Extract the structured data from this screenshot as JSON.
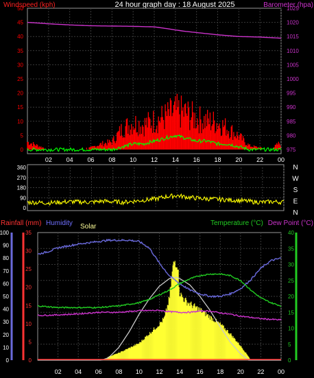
{
  "title": "24 hour graph day : 18 August 2025",
  "colors": {
    "wind": "#ff0000",
    "gust": "#ff0000",
    "avgwind": "#00ff00",
    "barometer": "#cc33cc",
    "direction": "#ffff00",
    "rain": "#ff3333",
    "humidity": "#6a6adc",
    "solar": "#ffff33",
    "solar_max": "#c8c8c8",
    "temperature": "#22cc22",
    "dewpoint": "#cc33cc",
    "grid": "#3a3a3a"
  },
  "time_ticks": [
    "02",
    "04",
    "06",
    "08",
    "10",
    "12",
    "14",
    "16",
    "18",
    "20",
    "22",
    "00"
  ],
  "chart_data": [
    {
      "type": "line",
      "left_axis_label": "Windspeed (kph)",
      "right_axis_label": "Barometer (hpa)",
      "left_ticks": [
        "0",
        "5",
        "10",
        "15",
        "20",
        "25",
        "30",
        "35",
        "40",
        "45",
        "50"
      ],
      "right_ticks": [
        "975",
        "980",
        "985",
        "990",
        "995",
        "1000",
        "1005",
        "1010",
        "1015",
        "1020",
        "1025"
      ],
      "ylim_left": [
        0,
        50
      ],
      "ylim_right": [
        975,
        1025
      ],
      "barometer": {
        "x": [
          0,
          2,
          4,
          6,
          8,
          10,
          12,
          13,
          14,
          15,
          16,
          17,
          18,
          19,
          20,
          21,
          22,
          23,
          24
        ],
        "y": [
          1020,
          1019.5,
          1019.1,
          1018.8,
          1018.7,
          1018.6,
          1018.4,
          1017.9,
          1017.3,
          1016.8,
          1016.4,
          1016.0,
          1015.6,
          1015.3,
          1015.0,
          1014.9,
          1014.8,
          1014.6,
          1014.4
        ]
      },
      "gust_envelope": {
        "x": [
          0,
          1,
          2,
          4,
          6,
          7,
          8,
          9,
          10,
          11,
          12,
          13,
          14,
          15,
          16,
          17,
          18,
          19,
          20,
          21,
          22,
          23,
          24
        ],
        "y": [
          4,
          2,
          0,
          0,
          1,
          3,
          4,
          11,
          14,
          13,
          15,
          17,
          20,
          19,
          16,
          15,
          14,
          11,
          7,
          2,
          1,
          0,
          4
        ]
      },
      "avg_wind": {
        "x": [
          0,
          8,
          9,
          10,
          11,
          12,
          13,
          14,
          15,
          16,
          17,
          18,
          19,
          20,
          21,
          24
        ],
        "y": [
          0,
          0,
          1,
          2,
          2,
          3,
          4,
          5,
          4,
          3,
          3,
          2,
          2,
          1,
          0,
          0
        ]
      }
    },
    {
      "type": "line",
      "left_ticks": [
        "0",
        "90",
        "180",
        "270",
        "360"
      ],
      "right_labels": [
        "N",
        "W",
        "S",
        "E",
        "N"
      ],
      "ylim": [
        0,
        360
      ],
      "direction": {
        "x": [
          0,
          2,
          4,
          6,
          7,
          8,
          9,
          10,
          11,
          12,
          13,
          14,
          15,
          16,
          17,
          18,
          19,
          20,
          21,
          22,
          23,
          24
        ],
        "y": [
          50,
          45,
          55,
          50,
          60,
          55,
          50,
          60,
          70,
          80,
          100,
          110,
          95,
          85,
          80,
          75,
          70,
          65,
          55,
          50,
          55,
          50
        ]
      }
    },
    {
      "type": "line",
      "labels": {
        "rainfall": "Rainfall (mm)",
        "humidity": "Humidity",
        "solar": "Solar",
        "temperature": "Temperature (°C)",
        "dewpoint": "Dew Point (°C)"
      },
      "humidity_ticks": [
        "0",
        "10",
        "20",
        "30",
        "40",
        "50",
        "60",
        "70",
        "80",
        "90",
        "100"
      ],
      "rain_ticks": [
        "0",
        "5",
        "10",
        "15",
        "20",
        "25",
        "30",
        "35"
      ],
      "temp_ticks": [
        "0",
        "5",
        "10",
        "15",
        "20",
        "25",
        "30",
        "35",
        "40"
      ],
      "ylim_humidity": [
        0,
        100
      ],
      "ylim_rain": [
        0,
        35
      ],
      "ylim_temp": [
        0,
        40
      ],
      "humidity": {
        "x": [
          0,
          1,
          2,
          4,
          5,
          6,
          7,
          8,
          9,
          10,
          11,
          12,
          13,
          14,
          15,
          16,
          17,
          18,
          19,
          20,
          21,
          22,
          23,
          24
        ],
        "y": [
          83,
          85,
          88,
          91,
          92,
          93,
          94,
          94,
          94,
          93,
          88,
          76,
          66,
          60,
          55,
          52,
          50,
          50,
          52,
          56,
          63,
          72,
          78,
          80
        ]
      },
      "temperature": {
        "x": [
          0,
          2,
          4,
          6,
          8,
          10,
          11,
          12,
          13,
          14,
          15,
          16,
          17,
          18,
          19,
          20,
          21,
          22,
          23,
          24
        ],
        "y": [
          17,
          16.5,
          16.5,
          16.5,
          17,
          18,
          19,
          20.5,
          22,
          24,
          25.5,
          26.5,
          27,
          27,
          26.5,
          25,
          22,
          19.5,
          18,
          17
        ]
      },
      "dewpoint": {
        "x": [
          0,
          2,
          4,
          6,
          8,
          10,
          12,
          13,
          14,
          15,
          16,
          17,
          18,
          19,
          20,
          21,
          22,
          23,
          24
        ],
        "y": [
          14,
          14.2,
          14.5,
          15,
          15,
          15.5,
          15.6,
          15.2,
          15,
          15,
          15.4,
          15.4,
          14.8,
          14.4,
          13.8,
          13.4,
          13,
          12.8,
          12.6
        ]
      },
      "solar_pct": {
        "x": [
          0,
          6.5,
          7,
          8,
          9,
          10,
          11,
          12,
          12.5,
          13,
          13.3,
          13.5,
          13.8,
          14,
          14.5,
          15,
          16,
          17,
          18,
          19,
          20,
          20.8,
          21,
          24
        ],
        "y": [
          0,
          0,
          3,
          6,
          10,
          14,
          22,
          30,
          35,
          52,
          76,
          83,
          80,
          56,
          50,
          47,
          42,
          36,
          30,
          22,
          12,
          3,
          0,
          0
        ]
      },
      "solar_max_pct": {
        "x": [
          0,
          6.3,
          7,
          8,
          9,
          10,
          11,
          12,
          13,
          13.6,
          14,
          15,
          16,
          17,
          18,
          19,
          20,
          20.8,
          24
        ],
        "y": [
          0,
          0,
          2,
          10,
          22,
          36,
          48,
          58,
          64,
          65,
          64,
          59,
          50,
          39,
          26,
          14,
          5,
          0,
          0
        ]
      }
    }
  ]
}
